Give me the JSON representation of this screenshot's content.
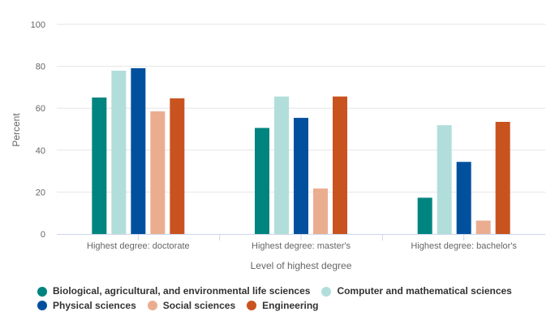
{
  "chart_data": {
    "type": "bar",
    "title": "",
    "xlabel": "Level of highest degree",
    "ylabel": "Percent",
    "ylim": [
      0,
      100
    ],
    "yticks": [
      0,
      20,
      40,
      60,
      80,
      100
    ],
    "grid": true,
    "legend_position": "bottom",
    "categories": [
      "Highest degree: doctorate",
      "Highest degree: master's",
      "Highest degree: bachelor's"
    ],
    "series": [
      {
        "name": "Biological, agricultural, and environmental life sciences",
        "color": "#00847f",
        "values": [
          65.1,
          50.6,
          17.3
        ]
      },
      {
        "name": "Computer and mathematical sciences",
        "color": "#b1dedb",
        "values": [
          77.9,
          65.6,
          51.9
        ]
      },
      {
        "name": "Physical sciences",
        "color": "#00509e",
        "values": [
          79.1,
          55.4,
          34.4
        ]
      },
      {
        "name": "Social sciences",
        "color": "#ebad90",
        "values": [
          58.5,
          21.7,
          6.4
        ]
      },
      {
        "name": "Engineering",
        "color": "#c9531f",
        "values": [
          64.7,
          65.6,
          53.5
        ]
      }
    ]
  }
}
